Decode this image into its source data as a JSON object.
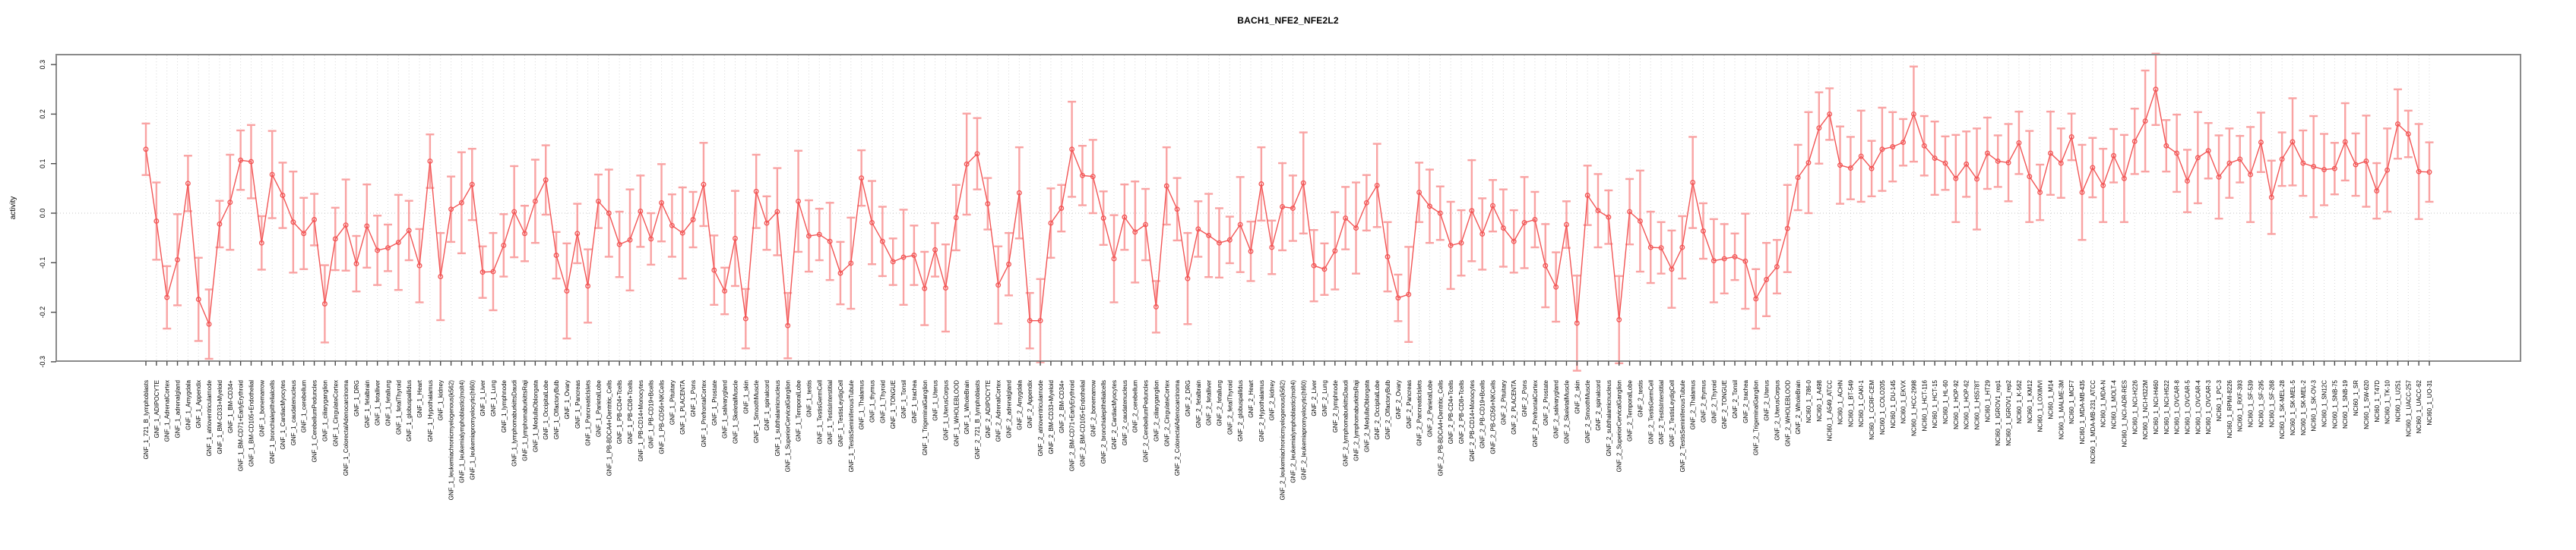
{
  "title": "BACH1_NFE2_NFE2L2",
  "chart_data": {
    "type": "line",
    "title": "BACH1_NFE2_NFE2L2",
    "xlabel": "",
    "ylabel": "activity",
    "ylim": [
      -0.31,
      0.32
    ],
    "yticks": [
      0.3,
      0.2,
      0.1,
      0.0,
      -0.1,
      -0.2,
      -0.3
    ],
    "ytick_labels": [
      "0.3",
      "0.2",
      "0.1",
      "0.0",
      "-0.1",
      "-0.2",
      "-0.3"
    ],
    "grid": "vertical dotted line at every category; horizontal dotted line at 0",
    "legend_position": "none",
    "marker": "open-circle",
    "series_color": "#f25555",
    "errorbar_color": "#f9a3a3",
    "frame_color": "#8a8a8a",
    "grid_color": "#d8d8d8",
    "categories": [
      "GNF_1_721_B_lymphoblasts",
      "GNF_1_ADIPOCYTE",
      "GNF_1_AdrenalCortex",
      "GNF_1_adrenalgland",
      "GNF_1_Amygdala",
      "GNF_1_Appendix",
      "GNF_1_atrioventricularnode",
      "GNF_1_BM-CD33+Myeloid",
      "GNF_1_BM-CD34+",
      "GNF_1_BM-CD71+EarlyErythroid",
      "GNF_1_BM-CD105+Endothelial",
      "GNF_1_bonemarrow",
      "GNF_1_bronchialepithelialcells",
      "GNF_1_CardiacMyocytes",
      "GNF_1_caudatenucleus",
      "GNF_1_cerebellum",
      "GNF_1_CerebellumPeduncles",
      "GNF_1_ciliaryganglion",
      "GNF_1_CingulateCortex",
      "GNF_1_ColorectalAdenocarcinoma",
      "GNF_1_DRG",
      "GNF_1_fetalbrain",
      "GNF_1_fetalliver",
      "GNF_1_fetallung",
      "GNF_1_fetalThyroid",
      "GNF_1_globuspallidus",
      "GNF_1_Heart",
      "GNF_1_Hypothalamus",
      "GNF_1_kidney",
      "GNF_1_leukemiachronicmyelogenous(k562)",
      "GNF_1_leukemialymphoblastic(molt4)",
      "GNF_1_leukemiapromyelocytic(hl60)",
      "GNF_1_Liver",
      "GNF_1_Lung",
      "GNF_1_lymphnode",
      "GNF_1_lymphomaburkittsDaudi",
      "GNF_1_lymphomaburkittsRaji",
      "GNF_1_MedullaOblongata",
      "GNF_1_OccipitalLobe",
      "GNF_1_OlfactoryBulb",
      "GNF_1_Ovary",
      "GNF_1_Pancreas",
      "GNF_1_PancreaticIslets",
      "GNF_1_ParietalLobe",
      "GNF_1_PB-BDCA4+Dentritic_Cells",
      "GNF_1_PB-CD4+Tcells",
      "GNF_1_PB-CD8+Tcells",
      "GNF_1_PB-CD14+Monocytes",
      "GNF_1_PB-CD19+Bcells",
      "GNF_1_PB-CD56+NKCells",
      "GNF_1_Pituitary",
      "GNF_1_PLACENTA",
      "GNF_1_Pons",
      "GNF_1_PrefrontalCortex",
      "GNF_1_Prostate",
      "GNF_1_salivarygland",
      "GNF_1_SkeletalMuscle",
      "GNF_1_skin",
      "GNF_1_SmoothMuscle",
      "GNF_1_spinalcord",
      "GNF_1_subthalamicnucleus",
      "GNF_1_SuperiorCervicalGanglion",
      "GNF_1_TemporalLobe",
      "GNF_1_testis",
      "GNF_1_TestisGermCell",
      "GNF_1_TestisInterstitial",
      "GNF_1_TestisLeydigCell",
      "GNF_1_TestisSeminiferousTubule",
      "GNF_1_Thalamus",
      "GNF_1_thymus",
      "GNF_1_Thyroid",
      "GNF_1_TONGUE",
      "GNF_1_Tonsil",
      "GNF_1_trachea",
      "GNF_1_TrigeminalGanglion",
      "GNF_1_Uterus",
      "GNF_1_UterusCorpus",
      "GNF_1_WHOLEBLOOD",
      "GNF_1_WholeBrain",
      "GNF_2_721_B_lymphoblasts",
      "GNF_2_ADIPOCYTE",
      "GNF_2_AdrenalCortex",
      "GNF_2_adrenalgland",
      "GNF_2_Amygdala",
      "GNF_2_Appendix",
      "GNF_2_atrioventricularnode",
      "GNF_2_BM-CD33+Myeloid",
      "GNF_2_BM-CD34+",
      "GNF_2_BM-CD71+EarlyErythroid",
      "GNF_2_BM-CD105+Endothelial",
      "GNF_2_bonemarrow",
      "GNF_2_bronchialepithelialcells",
      "GNF_2_CardiacMyocytes",
      "GNF_2_caudatenucleus",
      "GNF_2_cerebellum",
      "GNF_2_CerebellumPeduncles",
      "GNF_2_ciliaryganglion",
      "GNF_2_CingulateCortex",
      "GNF_2_ColorectalAdenocarcinoma",
      "GNF_2_DRG",
      "GNF_2_fetalbrain",
      "GNF_2_fetalliver",
      "GNF_2_fetallung",
      "GNF_2_fetalThyroid",
      "GNF_2_globuspallidus",
      "GNF_2_Heart",
      "GNF_2_Hypothalamus",
      "GNF_2_kidney",
      "GNF_2_leukemiachronicmyelogenous(k562)",
      "GNF_2_leukemialymphoblastic(molt4)",
      "GNF_2_leukemiapromyelocytic(hl60)",
      "GNF_2_Liver",
      "GNF_2_Lung",
      "GNF_2_lymphnode",
      "GNF_2_lymphomaburkittsDaudi",
      "GNF_2_lymphomaburkittsRaji",
      "GNF_2_MedullaOblongata",
      "GNF_2_OccipitalLobe",
      "GNF_2_OlfactoryBulb",
      "GNF_2_Ovary",
      "GNF_2_Pancreas",
      "GNF_2_PancreaticIslets",
      "GNF_2_ParietalLobe",
      "GNF_2_PB-BDCA4+Dentritic_Cells",
      "GNF_2_PB-CD4+Tcells",
      "GNF_2_PB-CD8+Tcells",
      "GNF_2_PB-CD14+Monocytes",
      "GNF_2_PB-CD19+Bcells",
      "GNF_2_PB-CD56+NKCells",
      "GNF_2_Pituitary",
      "GNF_2_PLACENTA",
      "GNF_2_Pons",
      "GNF_2_PrefrontalCortex",
      "GNF_2_Prostate",
      "GNF_2_salivarygland",
      "GNF_2_SkeletalMuscle",
      "GNF_2_skin",
      "GNF_2_SmoothMuscle",
      "GNF_2_spinalcord",
      "GNF_2_subthalamicnucleus",
      "GNF_2_SuperiorCervicalGanglion",
      "GNF_2_TemporalLobe",
      "GNF_2_testis",
      "GNF_2_TestisGermCell",
      "GNF_2_TestisInterstitial",
      "GNF_2_TestisLeydigCell",
      "GNF_2_TestisSeminiferousTubule",
      "GNF_2_Thalamus",
      "GNF_2_thymus",
      "GNF_2_Thyroid",
      "GNF_2_TONGUE",
      "GNF_2_Tonsil",
      "GNF_2_trachea",
      "GNF_2_TrigeminalGanglion",
      "GNF_2_Uterus",
      "GNF_2_UterusCorpus",
      "GNF_2_WHOLEBLOOD",
      "GNF_2_WholeBrain",
      "NCI60_1_786-0",
      "NCI60_1_A498",
      "NCI60_1_A549_ATCC",
      "NCI60_1_ACHN",
      "NCI60_1_BT-549",
      "NCI60_1_CAKI-1",
      "NCI60_1_CCRF-CEM",
      "NCI60_1_COLO205",
      "NCI60_1_DU-145",
      "NCI60_1_EKVX",
      "NCI60_1_HCC-2998",
      "NCI60_1_HCT-116",
      "NCI60_1_HCT-15",
      "NCI60_1_HL-60",
      "NCI60_1_HOP-92",
      "NCI60_1_HOP-62",
      "NCI60_1_HS578T",
      "NCI60_1_HT29",
      "NCI60_1_IGROV1_rep1",
      "NCI60_1_IGROV1_rep2",
      "NCI60_1_K-562",
      "NCI60_1_KM12",
      "NCI60_1_LOXIMVI",
      "NCI60_1_M14",
      "NCI60_1_MALME-3M",
      "NCI60_1_MCF7",
      "NCI60_1_MDA-MB-435",
      "NCI60_1_MDA-MB-231_ATCC",
      "NCI60_1_MDA-N",
      "NCI60_1_MOLT-4",
      "NCI60_1_NCI-ADR-RES",
      "NCI60_1_NCI-H226",
      "NCI60_1_NCI-H322M",
      "NCI60_1_NCI-H460",
      "NCI60_1_NCI-H522",
      "NCI60_1_OVCAR-8",
      "NCI60_1_OVCAR-5",
      "NCI60_1_OVCAR-4",
      "NCI60_1_OVCAR-3",
      "NCI60_1_PC-3",
      "NCI60_1_RPMI-8226",
      "NCI60_1_RXF-393",
      "NCI60_1_SF-539",
      "NCI60_1_SF-295",
      "NCI60_1_SF-268",
      "NCI60_1_SK-MEL-28",
      "NCI60_1_SK-MEL-5",
      "NCI60_1_SK-MEL-2",
      "NCI60_1_SK-OV-3",
      "NCI60_1_SN12C",
      "NCI60_1_SNB-75",
      "NCI60_1_SNB-19",
      "NCI60_1_SR",
      "NCI60_1_SW-620",
      "NCI60_1_T47D",
      "NCI60_1_TK-10",
      "NCI60_1_U251",
      "NCI60_1_UACC-257",
      "NCI60_1_UACC-62",
      "NCI60_1_UO-31"
    ],
    "values": [
      0.129,
      -0.016,
      -0.17,
      -0.094,
      0.06,
      -0.174,
      -0.224,
      -0.022,
      0.022,
      0.107,
      0.104,
      -0.06,
      0.078,
      0.036,
      -0.018,
      -0.041,
      -0.013,
      -0.183,
      -0.052,
      -0.024,
      -0.102,
      -0.026,
      -0.075,
      -0.07,
      -0.059,
      -0.035,
      -0.106,
      0.105,
      -0.128,
      0.008,
      0.021,
      0.058,
      -0.119,
      -0.118,
      -0.065,
      0.003,
      -0.041,
      0.024,
      0.067,
      -0.085,
      -0.157,
      -0.041,
      -0.147,
      0.024,
      0.0,
      -0.063,
      -0.054,
      0.004,
      -0.052,
      0.021,
      -0.025,
      -0.04,
      -0.013,
      0.058,
      -0.115,
      -0.157,
      -0.051,
      -0.213,
      0.044,
      -0.02,
      0.003,
      -0.227,
      0.024,
      -0.046,
      -0.043,
      -0.057,
      -0.121,
      -0.101,
      0.071,
      -0.019,
      -0.057,
      -0.098,
      -0.089,
      -0.085,
      -0.152,
      -0.074,
      -0.151,
      -0.009,
      0.099,
      0.12,
      0.019,
      -0.145,
      -0.103,
      0.041,
      -0.217,
      -0.217,
      -0.02,
      0.01,
      0.129,
      0.076,
      0.074,
      -0.01,
      -0.092,
      -0.008,
      -0.038,
      -0.023,
      -0.189,
      0.055,
      0.008,
      -0.132,
      -0.032,
      -0.045,
      -0.06,
      -0.054,
      -0.023,
      -0.077,
      0.059,
      -0.069,
      0.013,
      0.01,
      0.061,
      -0.106,
      -0.113,
      -0.076,
      -0.01,
      -0.03,
      0.021,
      0.056,
      -0.088,
      -0.171,
      -0.164,
      0.042,
      0.014,
      0.0,
      -0.065,
      -0.06,
      0.005,
      -0.042,
      0.015,
      -0.03,
      -0.057,
      -0.019,
      -0.013,
      -0.106,
      -0.149,
      -0.023,
      -0.222,
      0.036,
      0.005,
      -0.008,
      -0.215,
      0.003,
      -0.016,
      -0.069,
      -0.07,
      -0.113,
      -0.069,
      0.062,
      -0.036,
      -0.096,
      -0.092,
      -0.088,
      -0.097,
      -0.173,
      -0.134,
      -0.108,
      -0.031,
      0.072,
      0.102,
      0.172,
      0.2,
      0.097,
      0.091,
      0.115,
      0.09,
      0.129,
      0.134,
      0.143,
      0.2,
      0.136,
      0.111,
      0.101,
      0.07,
      0.099,
      0.069,
      0.121,
      0.105,
      0.102,
      0.142,
      0.074,
      0.042,
      0.121,
      0.101,
      0.154,
      0.042,
      0.092,
      0.056,
      0.116,
      0.07,
      0.145,
      0.186,
      0.25,
      0.136,
      0.121,
      0.065,
      0.112,
      0.126,
      0.073,
      0.101,
      0.109,
      0.078,
      0.143,
      0.032,
      0.109,
      0.144,
      0.101,
      0.094,
      0.088,
      0.09,
      0.144,
      0.098,
      0.105,
      0.045,
      0.087,
      0.18,
      0.16,
      0.084,
      0.083
    ],
    "se_pattern": [
      0.052,
      0.078,
      0.063,
      0.092,
      0.056,
      0.084,
      0.07,
      0.047,
      0.096,
      0.06,
      0.074,
      0.054,
      0.088,
      0.066,
      0.102,
      0.072
    ]
  }
}
